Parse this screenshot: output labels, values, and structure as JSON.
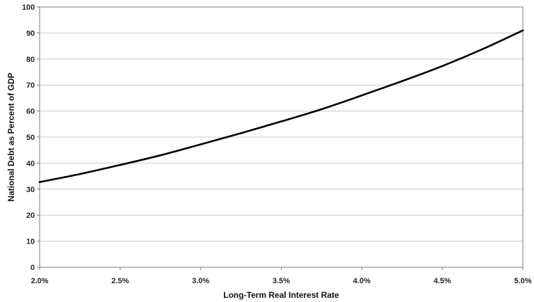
{
  "chart_data": {
    "type": "line",
    "title": "",
    "xlabel": "Long-Term Real Interest Rate",
    "ylabel": "National Debt as Percent of GDP",
    "xlim": [
      2.0,
      5.0
    ],
    "ylim": [
      0,
      100
    ],
    "x_ticks": [
      2.0,
      2.5,
      3.0,
      3.5,
      4.0,
      4.5,
      5.0
    ],
    "x_tick_labels": [
      "2.0%",
      "2.5%",
      "3.0%",
      "3.5%",
      "4.0%",
      "4.5%",
      "5.0%"
    ],
    "y_ticks": [
      0,
      10,
      20,
      30,
      40,
      50,
      60,
      70,
      80,
      90,
      100
    ],
    "y_tick_labels": [
      "0",
      "10",
      "20",
      "30",
      "40",
      "50",
      "60",
      "70",
      "80",
      "90",
      "100"
    ],
    "grid": true,
    "legend": "none",
    "series": [
      {
        "color": "#000000",
        "x": [
          2.0,
          2.25,
          2.5,
          2.75,
          3.0,
          3.25,
          3.5,
          3.75,
          4.0,
          4.25,
          4.5,
          4.75,
          5.0
        ],
        "y": [
          32.7,
          35.8,
          39.3,
          43.0,
          47.2,
          51.5,
          56.0,
          60.7,
          66.0,
          71.5,
          77.3,
          83.8,
          91.0
        ]
      }
    ]
  }
}
